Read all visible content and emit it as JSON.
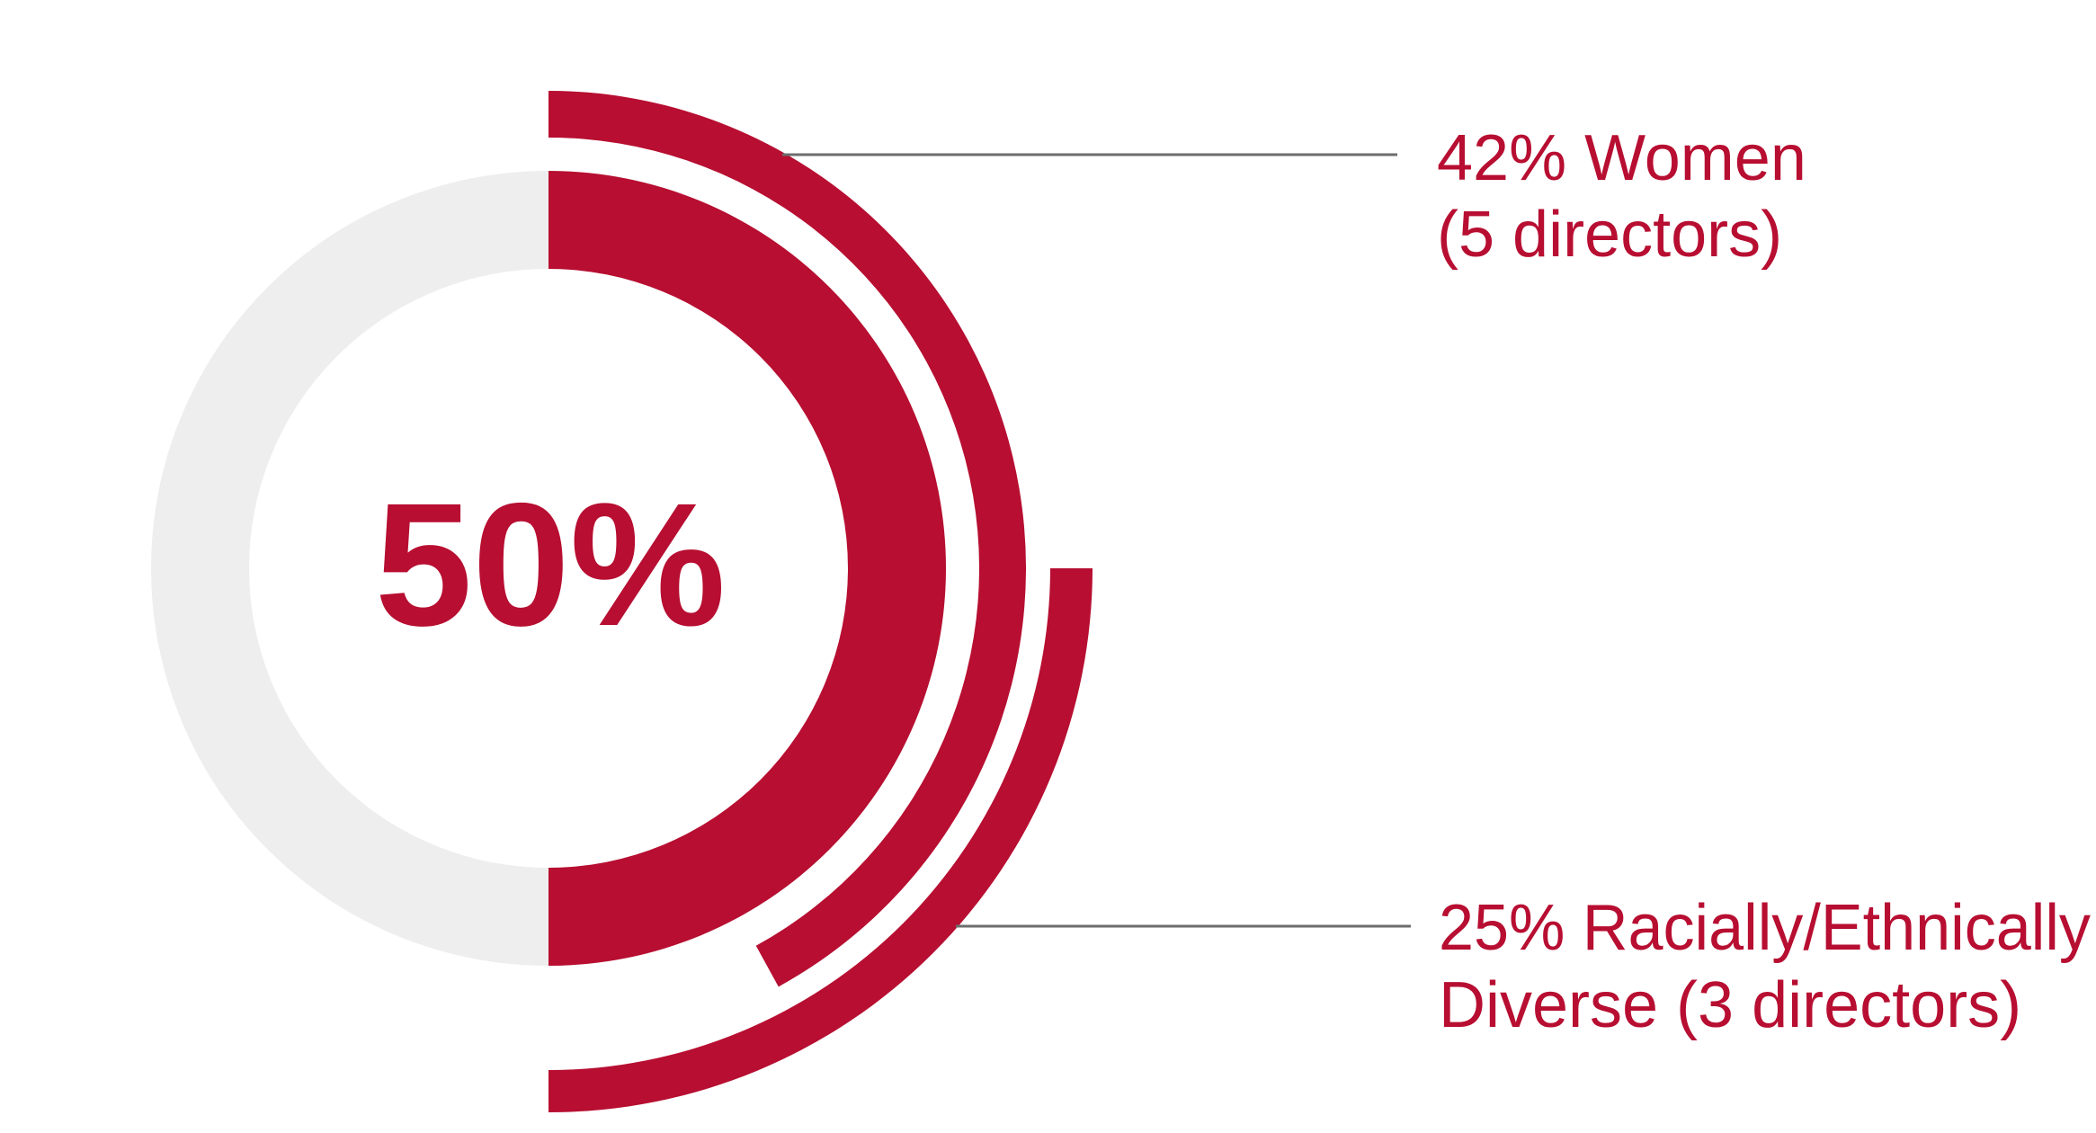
{
  "chart_data": {
    "type": "radial",
    "track_color": "#eeeeee",
    "rings": [
      {
        "value": 50,
        "value_label": "50%",
        "color": "#b70e31"
      },
      {
        "value": 42,
        "color": "#b70e31",
        "label": [
          "42% Women",
          "(5 directors)"
        ]
      },
      {
        "value": 25,
        "color": "#b70e31",
        "label": [
          "25% Racially/Ethnically",
          "Diverse (3 directors)"
        ]
      }
    ]
  }
}
